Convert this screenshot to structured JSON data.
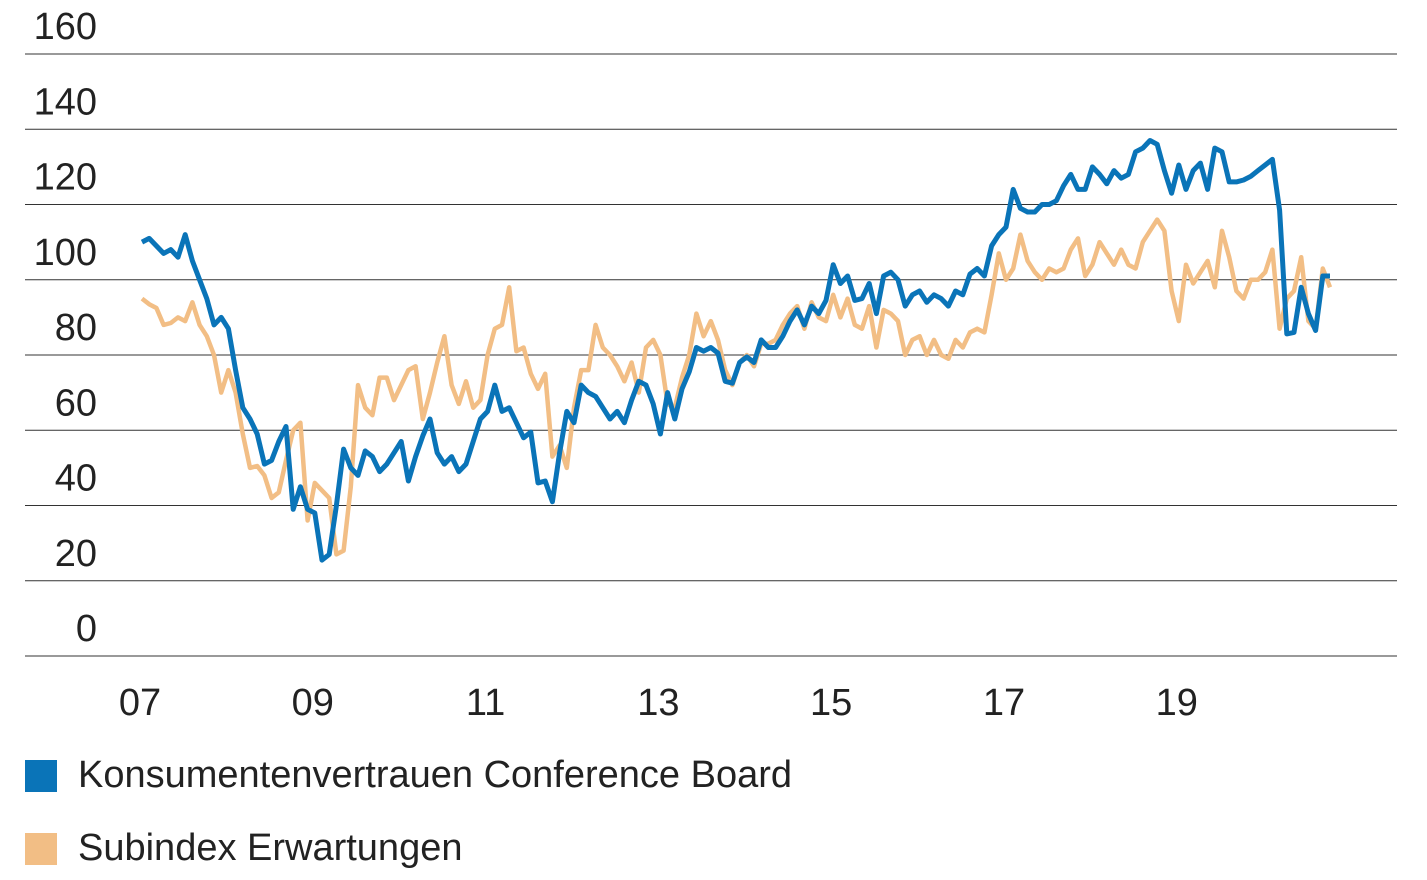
{
  "chart_data": {
    "type": "line",
    "categories": [
      "07",
      null,
      null,
      null,
      null,
      null,
      null,
      null,
      null,
      null,
      null,
      null,
      null,
      null,
      null,
      null,
      null,
      null,
      null,
      null,
      null,
      null,
      null,
      null,
      "09",
      null,
      null,
      null,
      null,
      null,
      null,
      null,
      null,
      null,
      null,
      null,
      null,
      null,
      null,
      null,
      null,
      null,
      null,
      null,
      null,
      null,
      null,
      null,
      "11",
      null,
      null,
      null,
      null,
      null,
      null,
      null,
      null,
      null,
      null,
      null,
      null,
      null,
      null,
      null,
      null,
      null,
      null,
      null,
      null,
      null,
      null,
      null,
      "13",
      null,
      null,
      null,
      null,
      null,
      null,
      null,
      null,
      null,
      null,
      null,
      null,
      null,
      null,
      null,
      null,
      null,
      null,
      null,
      null,
      null,
      null,
      null,
      "15",
      null,
      null,
      null,
      null,
      null,
      null,
      null,
      null,
      null,
      null,
      null,
      null,
      null,
      null,
      null,
      null,
      null,
      null,
      null,
      null,
      null,
      null,
      null,
      "17",
      null,
      null,
      null,
      null,
      null,
      null,
      null,
      null,
      null,
      null,
      null,
      null,
      null,
      null,
      null,
      null,
      null,
      null,
      null,
      null,
      null,
      null,
      null,
      "19",
      null,
      null,
      null,
      null,
      null,
      null,
      null,
      null,
      null,
      null,
      null,
      null,
      null,
      null,
      null,
      null,
      null,
      null,
      null,
      null,
      null
    ],
    "series": [
      {
        "name": "Konsumentenvertrauen Conference Board",
        "color": "#0a74b8",
        "values": [
          110,
          111,
          109,
          107,
          108,
          106,
          112,
          105,
          100,
          95,
          88,
          90,
          87,
          76,
          66,
          63,
          59,
          51,
          52,
          57,
          61,
          39,
          45,
          39,
          38,
          25.5,
          27,
          40,
          55,
          50,
          48,
          54.5,
          53,
          49,
          51,
          54,
          57,
          46.5,
          53,
          58.5,
          63,
          54,
          51,
          53,
          49,
          51,
          57,
          63,
          65,
          72,
          65,
          66,
          62,
          58,
          59.5,
          46,
          46.5,
          41,
          54,
          65,
          62,
          72,
          70,
          69,
          66,
          63,
          65,
          62,
          68,
          73,
          72,
          67,
          59,
          70,
          63,
          71,
          75.5,
          82,
          81,
          82,
          80.5,
          73,
          72.5,
          78,
          79.5,
          78,
          84,
          82,
          82,
          85,
          89,
          92,
          88,
          93,
          91,
          94.5,
          104,
          99,
          101,
          94.5,
          95,
          99,
          91,
          101,
          102,
          100,
          93,
          96,
          97,
          94,
          96,
          95,
          93,
          97,
          96,
          101.5,
          103,
          101,
          109,
          112,
          114,
          124,
          119,
          118,
          118,
          120,
          120,
          121,
          125,
          128,
          124,
          124,
          130,
          128,
          125.5,
          129,
          127,
          128,
          134,
          135,
          137,
          136,
          129,
          123,
          130.5,
          124,
          129,
          131,
          124,
          135,
          134,
          126,
          126,
          126.5,
          127.5,
          129,
          130.5,
          132,
          118.5,
          85.6,
          86,
          98,
          91,
          86.5,
          101,
          101
        ]
      },
      {
        "name": "Subindex Erwartungen",
        "color": "#f2be85",
        "values": [
          95,
          93.5,
          92.5,
          88,
          88.5,
          90,
          89,
          94,
          88,
          85,
          80,
          70,
          76,
          70,
          59,
          50,
          50.5,
          48,
          42,
          43.5,
          52,
          60,
          62,
          36,
          46,
          44,
          42,
          27,
          28,
          45,
          72,
          66,
          64,
          74,
          74,
          68,
          72,
          76,
          77,
          63,
          70,
          78,
          85,
          72,
          67,
          73,
          66,
          68,
          80,
          87,
          88,
          98,
          81,
          82,
          75,
          71,
          75,
          53,
          56,
          50,
          66,
          76,
          76,
          88,
          82,
          80,
          77,
          73,
          78,
          70,
          82,
          84,
          80,
          67,
          66,
          74,
          80,
          91,
          85,
          89,
          84,
          76,
          72,
          78,
          80,
          77,
          83,
          83,
          84,
          88,
          91,
          93,
          87,
          94,
          90,
          89,
          96,
          90,
          95,
          88,
          87,
          93,
          82,
          92,
          91,
          89,
          80,
          84,
          85,
          80,
          84,
          80,
          79,
          84,
          82,
          86,
          87,
          86,
          96,
          107,
          100,
          103,
          112,
          105,
          102,
          100,
          103,
          102,
          103,
          108,
          111,
          101,
          104,
          110,
          107,
          104,
          108,
          104,
          103,
          110,
          113,
          116,
          113,
          97,
          89,
          104,
          99,
          102,
          105,
          98,
          113,
          106,
          97,
          95,
          100,
          100,
          102,
          108,
          87,
          95,
          97,
          106,
          89,
          87,
          103,
          98
        ]
      }
    ],
    "ylim": [
      0,
      160
    ],
    "yticks": [
      0,
      20,
      40,
      60,
      80,
      100,
      120,
      140,
      160
    ],
    "grid": true
  }
}
